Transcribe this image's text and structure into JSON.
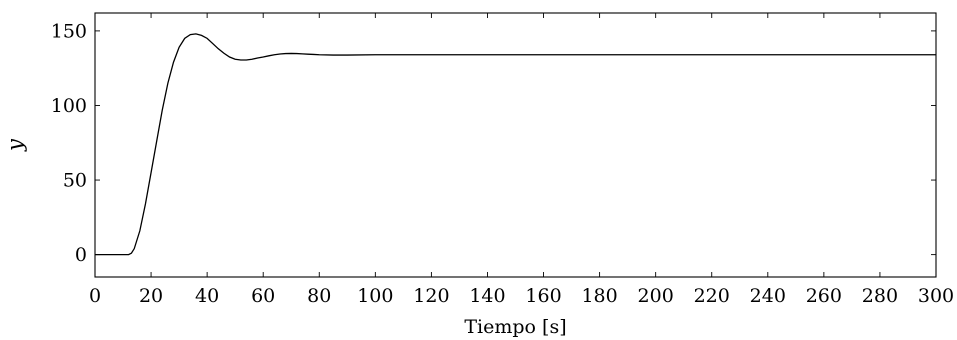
{
  "chart_data": {
    "type": "line",
    "title": "",
    "xlabel": "Tiempo [s]",
    "ylabel": "y",
    "xlim": [
      0,
      300
    ],
    "ylim": [
      -15,
      162
    ],
    "xticks": [
      0,
      20,
      40,
      60,
      80,
      100,
      120,
      140,
      160,
      180,
      200,
      220,
      240,
      260,
      280,
      300
    ],
    "yticks": [
      0,
      50,
      100,
      150
    ],
    "grid": false,
    "series": [
      {
        "x": [
          0,
          10,
          12,
          13,
          14,
          16,
          18,
          20,
          22,
          24,
          26,
          28,
          30,
          32,
          34,
          36,
          38,
          40,
          42,
          44,
          46,
          48,
          50,
          52,
          54,
          56,
          58,
          60,
          62,
          64,
          66,
          68,
          70,
          72,
          74,
          76,
          78,
          80,
          85,
          90,
          100,
          120,
          150,
          200,
          250,
          300
        ],
        "y": [
          0,
          0,
          0,
          1,
          4,
          16,
          34,
          55,
          76,
          97,
          115,
          129,
          139,
          145,
          147.5,
          148,
          147,
          145,
          141.5,
          138,
          135,
          132.5,
          131,
          130.5,
          130.5,
          131,
          131.8,
          132.5,
          133.3,
          134,
          134.5,
          134.8,
          134.9,
          134.8,
          134.6,
          134.4,
          134.2,
          134,
          133.8,
          133.8,
          134,
          134,
          134,
          134,
          134,
          134
        ]
      }
    ]
  }
}
